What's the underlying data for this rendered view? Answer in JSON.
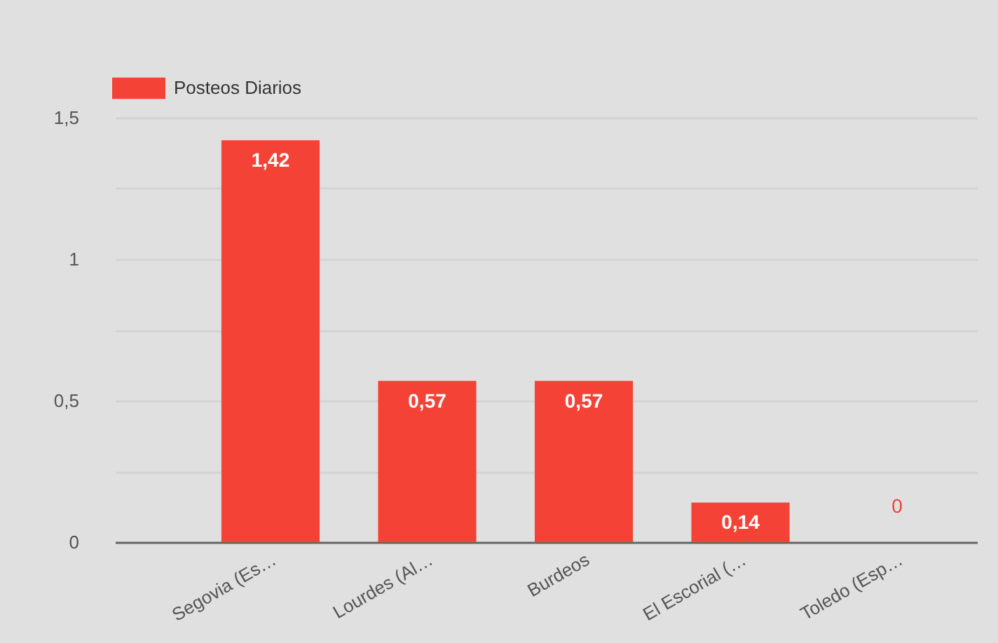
{
  "chart_data": {
    "type": "bar",
    "categories": [
      "Segovia (Es…",
      "Lourdes (Al…",
      "Burdeos",
      "El Escorial (…",
      "Toledo (Esp…"
    ],
    "series": [
      {
        "name": "Posteos Diarios",
        "color": "#f44336",
        "values": [
          1.42,
          0.57,
          0.57,
          0.14,
          0
        ],
        "value_labels": [
          "1,42",
          "0,57",
          "0,57",
          "0,14",
          "0"
        ]
      }
    ],
    "ylim": [
      0,
      1.5
    ],
    "yticks": [
      0,
      {
        "value": 0.25,
        "label": null
      },
      {
        "value": 0.5,
        "label": "0,5"
      },
      {
        "value": 0.75,
        "label": null
      },
      1,
      {
        "value": 1.25,
        "label": null
      },
      {
        "value": 1.5,
        "label": "1,5"
      }
    ],
    "grid": "y",
    "legend": "top left"
  }
}
